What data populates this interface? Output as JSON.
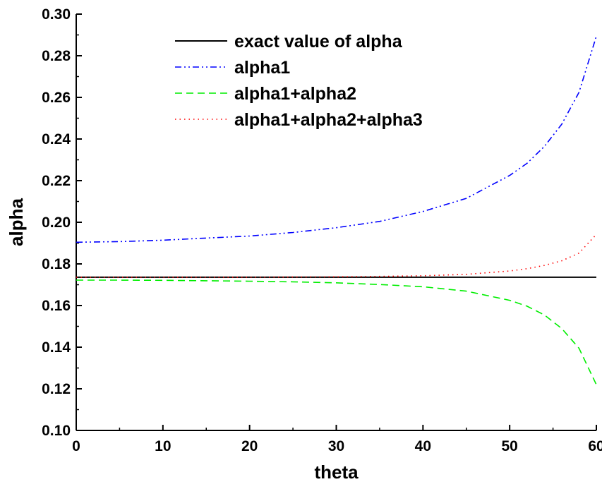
{
  "chart_data": {
    "type": "line",
    "xlabel": "theta",
    "ylabel": "alpha",
    "xlim": [
      0,
      60
    ],
    "ylim": [
      0.1,
      0.3
    ],
    "x_ticks": [
      "0",
      "10",
      "20",
      "30",
      "40",
      "50",
      "60"
    ],
    "y_ticks": [
      "0.10",
      "0.12",
      "0.14",
      "0.16",
      "0.18",
      "0.20",
      "0.22",
      "0.24",
      "0.26",
      "0.28",
      "0.30"
    ],
    "grid": false,
    "legend_position": "top-right",
    "x": [
      0,
      5,
      10,
      15,
      20,
      25,
      30,
      35,
      40,
      45,
      50,
      52,
      54,
      56,
      58,
      60
    ],
    "series": [
      {
        "name": "exact value of alpha",
        "color": "#000000",
        "dash": "solid",
        "values": [
          0.1736,
          0.1736,
          0.1736,
          0.1736,
          0.1736,
          0.1736,
          0.1736,
          0.1736,
          0.1736,
          0.1736,
          0.1736,
          0.1736,
          0.1736,
          0.1736,
          0.1736,
          0.1736
        ]
      },
      {
        "name": "alpha1",
        "color": "#0000ff",
        "dash": "dash-dot-dot",
        "values": [
          0.1904,
          0.1907,
          0.1914,
          0.1924,
          0.1934,
          0.1951,
          0.1974,
          0.2004,
          0.2052,
          0.2115,
          0.2225,
          0.2283,
          0.2364,
          0.2471,
          0.2624,
          0.2894
        ]
      },
      {
        "name": "alpha1+alpha2",
        "color": "#00ee00",
        "dash": "dashed",
        "values": [
          0.1722,
          0.1722,
          0.1721,
          0.1719,
          0.1717,
          0.1714,
          0.1709,
          0.1701,
          0.169,
          0.1669,
          0.1625,
          0.1597,
          0.1555,
          0.149,
          0.1395,
          0.122
        ]
      },
      {
        "name": "alpha1+alpha2+alpha3",
        "color": "#ff0000",
        "dash": "dotted",
        "values": [
          0.1736,
          0.1736,
          0.1736,
          0.1736,
          0.1736,
          0.1737,
          0.1738,
          0.174,
          0.1743,
          0.175,
          0.1766,
          0.1777,
          0.1793,
          0.1815,
          0.1852,
          0.1942
        ]
      }
    ]
  }
}
